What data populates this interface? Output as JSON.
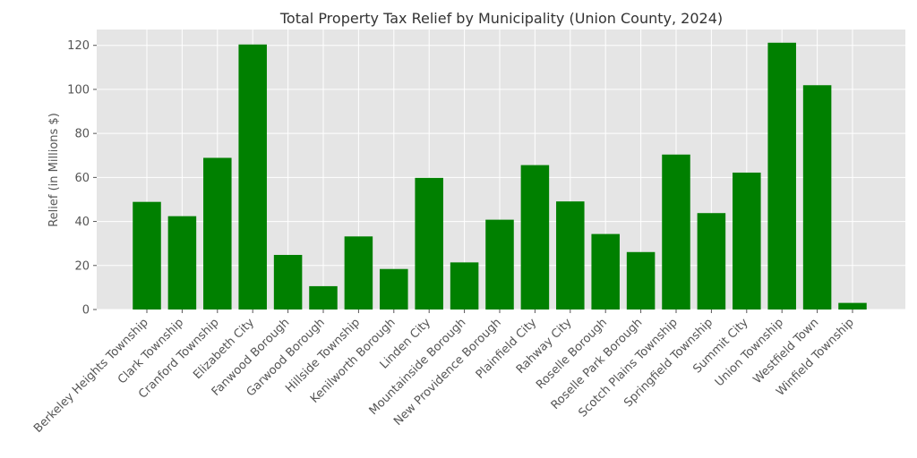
{
  "chart_data": {
    "type": "bar",
    "title": "Total Property Tax Relief by Municipality (Union County, 2024)",
    "xlabel": "",
    "ylabel": "Relief (in Millions $)",
    "categories": [
      "Berkeley Heights Township",
      "Clark Township",
      "Cranford Township",
      "Elizabeth City",
      "Fanwood Borough",
      "Garwood Borough",
      "Hillside Township",
      "Kenilworth Borough",
      "Linden City",
      "Mountainside Borough",
      "New Providence Borough",
      "Plainfield City",
      "Rahway City",
      "Roselle Borough",
      "Roselle Park Borough",
      "Scotch Plains Township",
      "Springfield Township",
      "Summit City",
      "Union Township",
      "Westfield Town",
      "Winfield Township"
    ],
    "values": [
      48.9,
      42.4,
      68.9,
      120.4,
      24.8,
      10.6,
      33.2,
      18.4,
      59.8,
      21.4,
      40.8,
      65.6,
      49.1,
      34.3,
      26.1,
      70.4,
      43.8,
      62.2,
      121.2,
      101.9,
      3.0
    ],
    "ylim": [
      0,
      127.2
    ],
    "yticks": [
      0,
      20,
      40,
      60,
      80,
      100,
      120
    ],
    "grid": true,
    "legend": "none",
    "colors": {
      "bar": "#008000",
      "plot_bg": "#e5e5e5",
      "grid": "#ffffff",
      "text": "#555555",
      "title": "#333333"
    }
  }
}
